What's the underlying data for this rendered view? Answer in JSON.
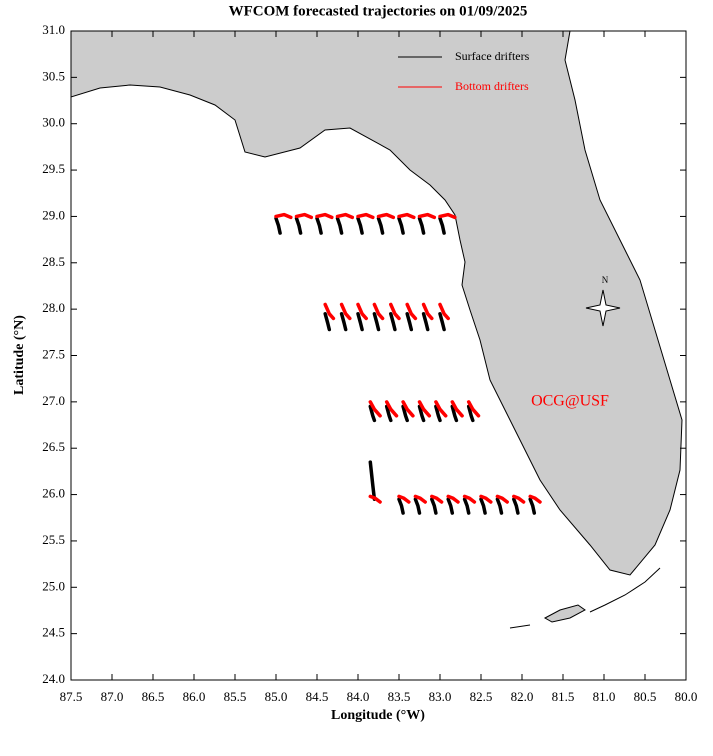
{
  "chart_data": {
    "type": "trajectory_map",
    "title": "WFCOM forecasted trajectories on 01/09/2025",
    "x_label": "Longitude (°W)",
    "y_label": "Latitude (°N)",
    "xlim": [
      87.5,
      80.0
    ],
    "ylim": [
      24.0,
      31.0
    ],
    "xticks": [
      87.5,
      {
        "value": 87,
        "label": "87.0"
      },
      86.5,
      {
        "value": 86,
        "label": "86.0"
      },
      85.5,
      {
        "value": 85,
        "label": "85.0"
      },
      84.5,
      {
        "value": 84,
        "label": "84.0"
      },
      83.5,
      {
        "value": 83,
        "label": "83.0"
      },
      82.5,
      {
        "value": 82,
        "label": "82.0"
      },
      81.5,
      {
        "value": 81,
        "label": "81.0"
      },
      80.5,
      {
        "value": 80,
        "label": "80.0"
      }
    ],
    "yticks": [
      {
        "value": 24,
        "label": "24.0"
      },
      24.5,
      {
        "value": 25,
        "label": "25.0"
      },
      25.5,
      {
        "value": 26,
        "label": "26.0"
      },
      26.5,
      {
        "value": 27,
        "label": "27.0"
      },
      27.5,
      {
        "value": 28,
        "label": "28.0"
      },
      28.5,
      {
        "value": 29,
        "label": "29.0"
      },
      29.5,
      {
        "value": 30,
        "label": "30.0"
      },
      30.5,
      {
        "value": 31,
        "label": "31.0"
      }
    ],
    "annotation": "OCG@USF",
    "compass": "N",
    "series": [
      {
        "name": "Surface drifters",
        "color": "#000000",
        "tracks": [
          {
            "x": [
              85,
              84.97,
              84.95
            ],
            "y": [
              28.98,
              28.9,
              28.82
            ]
          },
          {
            "x": [
              84.75,
              84.72,
              84.7
            ],
            "y": [
              28.98,
              28.9,
              28.82
            ]
          },
          {
            "x": [
              84.5,
              84.47,
              84.45
            ],
            "y": [
              28.98,
              28.9,
              28.82
            ]
          },
          {
            "x": [
              84.25,
              84.22,
              84.2
            ],
            "y": [
              28.98,
              28.9,
              28.82
            ]
          },
          {
            "x": [
              84,
              83.97,
              83.95
            ],
            "y": [
              28.98,
              28.9,
              28.82
            ]
          },
          {
            "x": [
              83.75,
              83.72,
              83.7
            ],
            "y": [
              28.98,
              28.9,
              28.82
            ]
          },
          {
            "x": [
              83.5,
              83.47,
              83.45
            ],
            "y": [
              28.98,
              28.9,
              28.82
            ]
          },
          {
            "x": [
              83.25,
              83.22,
              83.2
            ],
            "y": [
              28.98,
              28.9,
              28.82
            ]
          },
          {
            "x": [
              83,
              82.97,
              82.95
            ],
            "y": [
              28.98,
              28.9,
              28.82
            ]
          },
          {
            "x": [
              84.4,
              84.37,
              84.35
            ],
            "y": [
              27.95,
              27.85,
              27.78
            ]
          },
          {
            "x": [
              84.2,
              84.17,
              84.15
            ],
            "y": [
              27.95,
              27.85,
              27.78
            ]
          },
          {
            "x": [
              84,
              83.97,
              83.95
            ],
            "y": [
              27.95,
              27.85,
              27.78
            ]
          },
          {
            "x": [
              83.8,
              83.77,
              83.75
            ],
            "y": [
              27.95,
              27.85,
              27.78
            ]
          },
          {
            "x": [
              83.6,
              83.57,
              83.55
            ],
            "y": [
              27.95,
              27.85,
              27.78
            ]
          },
          {
            "x": [
              83.4,
              83.37,
              83.35
            ],
            "y": [
              27.95,
              27.85,
              27.78
            ]
          },
          {
            "x": [
              83.2,
              83.17,
              83.15
            ],
            "y": [
              27.95,
              27.85,
              27.78
            ]
          },
          {
            "x": [
              83,
              82.97,
              82.95
            ],
            "y": [
              27.95,
              27.85,
              27.78
            ]
          },
          {
            "x": [
              83.85,
              83.82,
              83.8
            ],
            "y": [
              26.95,
              26.85,
              26.8
            ]
          },
          {
            "x": [
              83.65,
              83.62,
              83.6
            ],
            "y": [
              26.95,
              26.85,
              26.8
            ]
          },
          {
            "x": [
              83.45,
              83.42,
              83.4
            ],
            "y": [
              26.95,
              26.85,
              26.8
            ]
          },
          {
            "x": [
              83.25,
              83.22,
              83.2
            ],
            "y": [
              26.95,
              26.85,
              26.8
            ]
          },
          {
            "x": [
              83.05,
              83.02,
              83
            ],
            "y": [
              26.95,
              26.85,
              26.8
            ]
          },
          {
            "x": [
              82.85,
              82.82,
              82.8
            ],
            "y": [
              26.95,
              26.85,
              26.8
            ]
          },
          {
            "x": [
              82.65,
              82.62,
              82.6
            ],
            "y": [
              26.95,
              26.85,
              26.8
            ]
          },
          {
            "x": [
              83.85,
              83.82,
              83.8
            ],
            "y": [
              26.35,
              26.1,
              25.95
            ]
          },
          {
            "x": [
              83.5,
              83.47,
              83.45
            ],
            "y": [
              25.95,
              25.88,
              25.8
            ]
          },
          {
            "x": [
              83.3,
              83.27,
              83.25
            ],
            "y": [
              25.95,
              25.88,
              25.8
            ]
          },
          {
            "x": [
              83.1,
              83.07,
              83.05
            ],
            "y": [
              25.95,
              25.88,
              25.8
            ]
          },
          {
            "x": [
              82.9,
              82.87,
              82.85
            ],
            "y": [
              25.95,
              25.88,
              25.8
            ]
          },
          {
            "x": [
              82.7,
              82.67,
              82.65
            ],
            "y": [
              25.95,
              25.88,
              25.8
            ]
          },
          {
            "x": [
              82.5,
              82.47,
              82.45
            ],
            "y": [
              25.95,
              25.88,
              25.8
            ]
          },
          {
            "x": [
              82.3,
              82.27,
              82.25
            ],
            "y": [
              25.95,
              25.88,
              25.8
            ]
          },
          {
            "x": [
              82.1,
              82.07,
              82.05
            ],
            "y": [
              25.95,
              25.88,
              25.8
            ]
          },
          {
            "x": [
              81.9,
              81.87,
              81.85
            ],
            "y": [
              25.95,
              25.88,
              25.8
            ]
          }
        ]
      },
      {
        "name": "Bottom drifters",
        "color": "#ff0000",
        "tracks": [
          {
            "x": [
              85,
              84.9,
              84.82
            ],
            "y": [
              29.0,
              29.02,
              28.99
            ]
          },
          {
            "x": [
              84.75,
              84.65,
              84.57
            ],
            "y": [
              29.0,
              29.02,
              28.99
            ]
          },
          {
            "x": [
              84.5,
              84.4,
              84.32
            ],
            "y": [
              29.0,
              29.02,
              28.99
            ]
          },
          {
            "x": [
              84.25,
              84.15,
              84.07
            ],
            "y": [
              29.0,
              29.02,
              28.99
            ]
          },
          {
            "x": [
              84,
              83.9,
              83.82
            ],
            "y": [
              29.0,
              29.02,
              28.99
            ]
          },
          {
            "x": [
              83.75,
              83.65,
              83.57
            ],
            "y": [
              29.0,
              29.02,
              28.99
            ]
          },
          {
            "x": [
              83.5,
              83.4,
              83.32
            ],
            "y": [
              29.0,
              29.02,
              28.99
            ]
          },
          {
            "x": [
              83.25,
              83.15,
              83.07
            ],
            "y": [
              29.0,
              29.02,
              28.99
            ]
          },
          {
            "x": [
              83,
              82.9,
              82.82
            ],
            "y": [
              29.0,
              29.02,
              28.99
            ]
          },
          {
            "x": [
              84.4,
              84.35,
              84.3
            ],
            "y": [
              28.05,
              27.95,
              27.9
            ]
          },
          {
            "x": [
              84.2,
              84.15,
              84.1
            ],
            "y": [
              28.05,
              27.95,
              27.9
            ]
          },
          {
            "x": [
              84,
              83.95,
              83.9
            ],
            "y": [
              28.05,
              27.95,
              27.9
            ]
          },
          {
            "x": [
              83.8,
              83.75,
              83.7
            ],
            "y": [
              28.05,
              27.95,
              27.9
            ]
          },
          {
            "x": [
              83.6,
              83.55,
              83.5
            ],
            "y": [
              28.05,
              27.95,
              27.9
            ]
          },
          {
            "x": [
              83.4,
              83.35,
              83.3
            ],
            "y": [
              28.05,
              27.95,
              27.9
            ]
          },
          {
            "x": [
              83.2,
              83.15,
              83.1
            ],
            "y": [
              28.05,
              27.95,
              27.9
            ]
          },
          {
            "x": [
              83,
              82.95,
              82.9
            ],
            "y": [
              28.05,
              27.95,
              27.9
            ]
          },
          {
            "x": [
              83.85,
              83.8,
              83.73
            ],
            "y": [
              27.0,
              26.92,
              26.85
            ]
          },
          {
            "x": [
              83.65,
              83.6,
              83.53
            ],
            "y": [
              27.0,
              26.92,
              26.85
            ]
          },
          {
            "x": [
              83.45,
              83.4,
              83.33
            ],
            "y": [
              27.0,
              26.92,
              26.85
            ]
          },
          {
            "x": [
              83.25,
              83.2,
              83.13
            ],
            "y": [
              27.0,
              26.92,
              26.85
            ]
          },
          {
            "x": [
              83.05,
              83,
              82.93
            ],
            "y": [
              27.0,
              26.92,
              26.85
            ]
          },
          {
            "x": [
              82.85,
              82.8,
              82.73
            ],
            "y": [
              27.0,
              26.92,
              26.85
            ]
          },
          {
            "x": [
              82.65,
              82.6,
              82.53
            ],
            "y": [
              27.0,
              26.92,
              26.85
            ]
          },
          {
            "x": [
              83.85,
              83.79,
              83.73
            ],
            "y": [
              25.98,
              25.96,
              25.92
            ]
          },
          {
            "x": [
              83.5,
              83.44,
              83.38
            ],
            "y": [
              25.98,
              25.96,
              25.92
            ]
          },
          {
            "x": [
              83.3,
              83.24,
              83.18
            ],
            "y": [
              25.98,
              25.96,
              25.92
            ]
          },
          {
            "x": [
              83.1,
              83.04,
              82.98
            ],
            "y": [
              25.98,
              25.96,
              25.92
            ]
          },
          {
            "x": [
              82.9,
              82.84,
              82.78
            ],
            "y": [
              25.98,
              25.96,
              25.92
            ]
          },
          {
            "x": [
              82.7,
              82.64,
              82.58
            ],
            "y": [
              25.98,
              25.96,
              25.92
            ]
          },
          {
            "x": [
              82.5,
              82.44,
              82.38
            ],
            "y": [
              25.98,
              25.96,
              25.92
            ]
          },
          {
            "x": [
              82.3,
              82.24,
              82.18
            ],
            "y": [
              25.98,
              25.96,
              25.92
            ]
          },
          {
            "x": [
              82.1,
              82.04,
              81.98
            ],
            "y": [
              25.98,
              25.96,
              25.92
            ]
          },
          {
            "x": [
              81.9,
              81.84,
              81.78
            ],
            "y": [
              25.98,
              25.96,
              25.92
            ]
          }
        ]
      }
    ]
  }
}
